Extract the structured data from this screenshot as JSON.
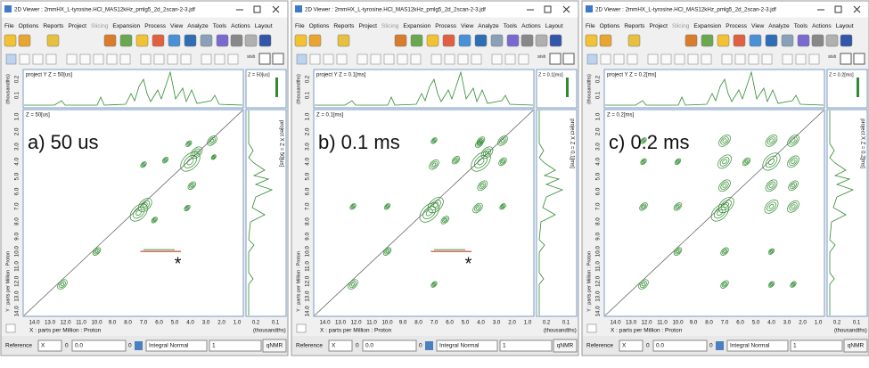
{
  "window_title": "2D Viewer : 2mmHX_L-tyrosine.HCl_MAS12kHz_pmlg5_2d_2scan-2-3.jdf",
  "menu": [
    "File",
    "Options",
    "Reports",
    "Project",
    "Slicing",
    "Expansion",
    "Process",
    "View",
    "Analyze",
    "Tools",
    "Actions",
    "Layout"
  ],
  "shift_label": "Shift",
  "x_ticks": [
    "14.0",
    "13.0",
    "12.0",
    "11.0",
    "10.0",
    "9.0",
    "8.0",
    "7.0",
    "6.0",
    "5.0",
    "4.0",
    "3.0",
    "2.0",
    "1.0"
  ],
  "y_ticks": [
    "1.0",
    "2.0",
    "3.0",
    "4.0",
    "5.0",
    "6.0",
    "7.0",
    "8.0",
    "9.0",
    "10.0",
    "11.0",
    "12.0",
    "13.0",
    "14.0"
  ],
  "projection_ticks": [
    "0.2",
    "0.1"
  ],
  "projection_unit": "(thousandths)",
  "x_axis_label": "X : parts per Million : Proton",
  "y_axis_label": "Y : parts per Million : Proton",
  "bottom_bar": {
    "reference": "Reference",
    "axis": "X",
    "index": "0",
    "offset": "0.0",
    "index2": "0",
    "mode": "Integral Normal",
    "count": "1",
    "button": "qNMR"
  },
  "panels": [
    {
      "label": "a) 50 us",
      "z": "Z = 50[us]",
      "project_y": "project Y Z = 50[us]",
      "project_x": "project X Z = 50[us]",
      "asterisk": "*"
    },
    {
      "label": "b) 0.1 ms",
      "z": "Z = 0.1[ms]",
      "project_y": "project Y Z = 0.1[ms]",
      "project_x": "project X Z = 0.1[ms]",
      "asterisk": "*"
    },
    {
      "label": "c) 0.2 ms",
      "z": "Z = 0.2[ms]",
      "project_y": "project Y Z = 0.2[ms]",
      "project_x": "project X Z = 0.2[ms]"
    }
  ]
}
